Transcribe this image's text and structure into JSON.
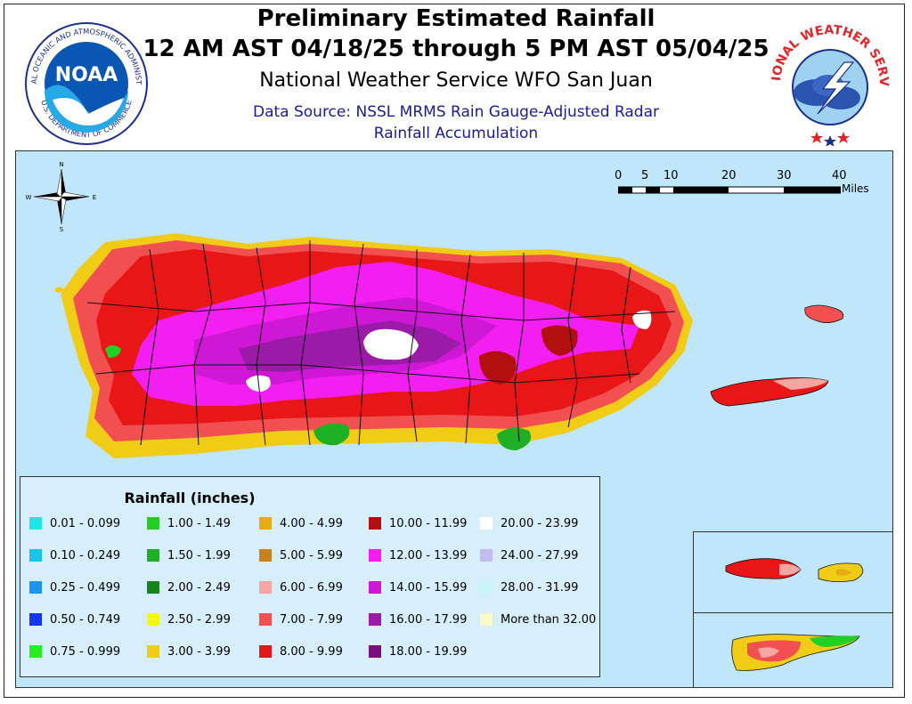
{
  "header": {
    "title": "Preliminary Estimated Rainfall",
    "period": "12 AM AST 04/18/25 through 5 PM AST 05/04/25",
    "office": "National Weather Service WFO San Juan",
    "source_line1": "Data Source: NSSL MRMS Rain Gauge-Adjusted Radar",
    "source_line2": "Rainfall Accumulation"
  },
  "logos": {
    "noaa": {
      "center_text": "NOAA",
      "ring_text": "NATIONAL OCEANIC AND ATMOSPHERIC ADMINISTRATION",
      "bottom_text": "U.S. DEPARTMENT OF COMMERCE"
    },
    "nws": {
      "ring_text": "NATIONAL WEATHER SERVICE"
    }
  },
  "compass": {
    "n": "N",
    "s": "S",
    "e": "E",
    "w": "W"
  },
  "scale": {
    "ticks": [
      "0",
      "5",
      "10",
      "20",
      "30",
      "40"
    ],
    "unit": "Miles"
  },
  "legend": {
    "title": "Rainfall (inches)",
    "columns": [
      [
        {
          "label": "0.01 - 0.099",
          "color": "#1ee6e6"
        },
        {
          "label": "0.10 - 0.249",
          "color": "#19c3ee"
        },
        {
          "label": "0.25 - 0.499",
          "color": "#1a96ef"
        },
        {
          "label": "0.50 - 0.749",
          "color": "#1435ee"
        },
        {
          "label": "0.75 - 0.999",
          "color": "#22ee20"
        }
      ],
      [
        {
          "label": "1.00 - 1.49",
          "color": "#21cf25"
        },
        {
          "label": "1.50 - 1.99",
          "color": "#1daf24"
        },
        {
          "label": "2.00 - 2.49",
          "color": "#15851b"
        },
        {
          "label": "2.50 - 2.99",
          "color": "#f6f613"
        },
        {
          "label": "3.00 - 3.99",
          "color": "#f0cc16"
        }
      ],
      [
        {
          "label": "4.00 - 4.99",
          "color": "#e5ac15"
        },
        {
          "label": "5.00 - 5.99",
          "color": "#c9801f"
        },
        {
          "label": "6.00 - 6.99",
          "color": "#f5a6a0"
        },
        {
          "label": "7.00 - 7.99",
          "color": "#f25050"
        },
        {
          "label": "8.00 - 9.99",
          "color": "#e81616"
        }
      ],
      [
        {
          "label": "10.00 - 11.99",
          "color": "#b30f0f"
        },
        {
          "label": "12.00 - 13.99",
          "color": "#f21ef2"
        },
        {
          "label": "14.00 - 15.99",
          "color": "#cf18d6"
        },
        {
          "label": "16.00 - 17.99",
          "color": "#9c1aa8"
        },
        {
          "label": "18.00 - 19.99",
          "color": "#7a0f7e"
        }
      ],
      [
        {
          "label": "20.00 - 23.99",
          "color": "#ffffff"
        },
        {
          "label": "24.00 - 27.99",
          "color": "#c2bdf2"
        },
        {
          "label": "28.00 - 31.99",
          "color": "#c8f5f5"
        },
        {
          "label": "More than 32.00",
          "color": "#fbf9c8"
        }
      ]
    ]
  }
}
